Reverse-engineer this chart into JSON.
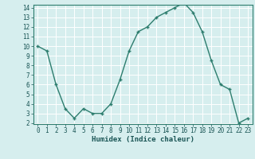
{
  "x": [
    0,
    1,
    2,
    3,
    4,
    5,
    6,
    7,
    8,
    9,
    10,
    11,
    12,
    13,
    14,
    15,
    16,
    17,
    18,
    19,
    20,
    21,
    22,
    23
  ],
  "y": [
    10,
    9.5,
    6,
    3.5,
    2.5,
    3.5,
    3,
    3,
    4,
    6.5,
    9.5,
    11.5,
    12,
    13,
    13.5,
    14,
    14.5,
    13.5,
    11.5,
    8.5,
    6,
    5.5,
    2,
    2.5
  ],
  "xlabel": "Humidex (Indice chaleur)",
  "line_color": "#2d7d6e",
  "marker": "+",
  "bg_color": "#d6eeee",
  "grid_color": "#ffffff",
  "ylim": [
    2,
    14
  ],
  "xlim": [
    -0.5,
    23.5
  ],
  "yticks": [
    2,
    3,
    4,
    5,
    6,
    7,
    8,
    9,
    10,
    11,
    12,
    13,
    14
  ],
  "xticks": [
    0,
    1,
    2,
    3,
    4,
    5,
    6,
    7,
    8,
    9,
    10,
    11,
    12,
    13,
    14,
    15,
    16,
    17,
    18,
    19,
    20,
    21,
    22,
    23
  ],
  "tick_fontsize": 5.5,
  "label_fontsize": 6.5
}
